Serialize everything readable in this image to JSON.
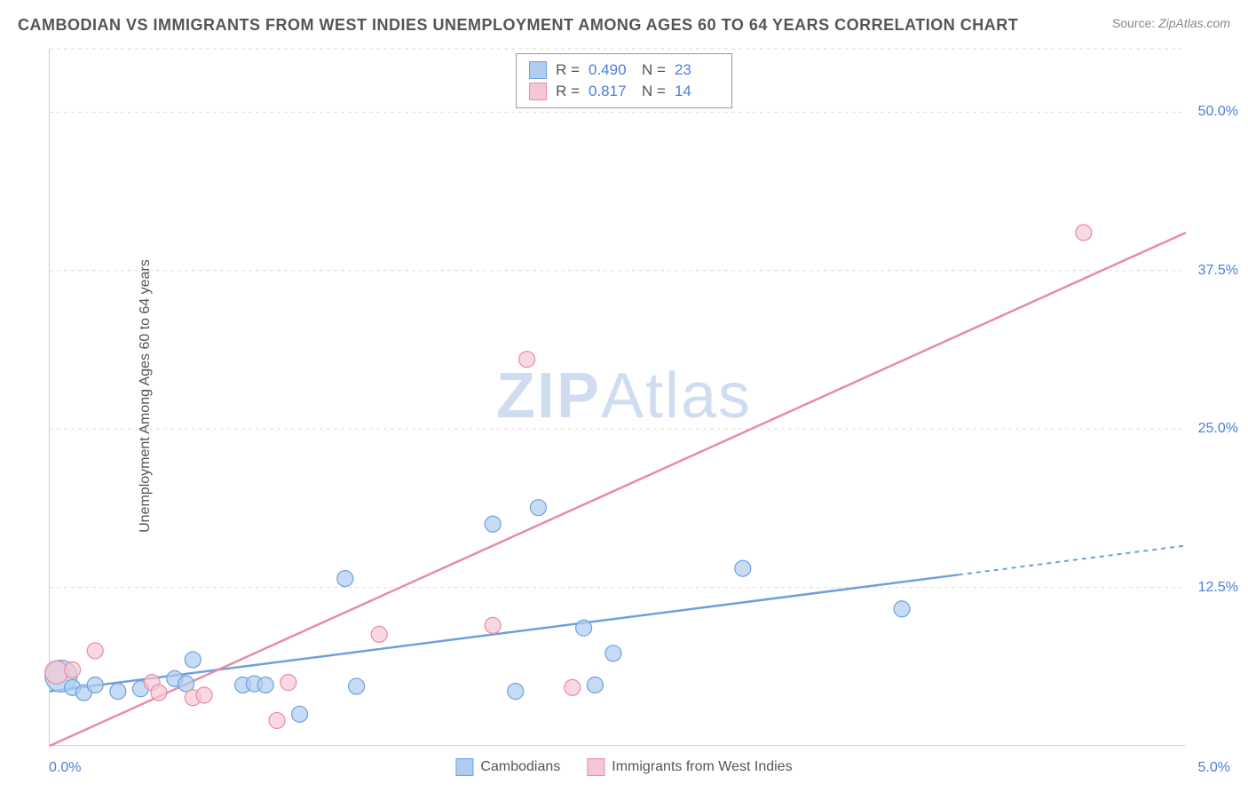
{
  "title": "CAMBODIAN VS IMMIGRANTS FROM WEST INDIES UNEMPLOYMENT AMONG AGES 60 TO 64 YEARS CORRELATION CHART",
  "source_label": "Source:",
  "source_value": "ZipAtlas.com",
  "ylabel": "Unemployment Among Ages 60 to 64 years",
  "watermark_a": "ZIP",
  "watermark_b": "Atlas",
  "chart": {
    "type": "scatter",
    "background_color": "#ffffff",
    "grid_color": "#dddddd",
    "axis_color": "#cccccc",
    "tick_color": "#4a7fd8",
    "xlim": [
      0.0,
      5.0
    ],
    "ylim": [
      0.0,
      55.0
    ],
    "yticks": [
      12.5,
      25.0,
      37.5,
      50.0
    ],
    "ytick_labels": [
      "12.5%",
      "25.0%",
      "37.5%",
      "50.0%"
    ],
    "xtick_min_label": "0.0%",
    "xtick_max_label": "5.0%",
    "series": [
      {
        "name": "Cambodians",
        "color_fill": "#aecdf0",
        "color_stroke": "#6ea0dd",
        "r_value": "0.490",
        "n_value": "23",
        "marker_radius": 9,
        "points": [
          [
            0.05,
            5.5,
            18
          ],
          [
            0.1,
            4.6,
            9
          ],
          [
            0.15,
            4.2,
            9
          ],
          [
            0.2,
            4.8,
            9
          ],
          [
            0.3,
            4.3,
            9
          ],
          [
            0.4,
            4.5,
            9
          ],
          [
            0.55,
            5.3,
            9
          ],
          [
            0.6,
            4.9,
            9
          ],
          [
            0.63,
            6.8,
            9
          ],
          [
            0.85,
            4.8,
            9
          ],
          [
            0.9,
            4.9,
            9
          ],
          [
            0.95,
            4.8,
            9
          ],
          [
            1.1,
            2.5,
            9
          ],
          [
            1.35,
            4.7,
            9
          ],
          [
            1.3,
            13.2,
            9
          ],
          [
            1.95,
            17.5,
            9
          ],
          [
            2.05,
            4.3,
            9
          ],
          [
            2.15,
            18.8,
            9
          ],
          [
            2.35,
            9.3,
            9
          ],
          [
            2.4,
            4.8,
            9
          ],
          [
            2.48,
            7.3,
            9
          ],
          [
            3.05,
            14.0,
            9
          ],
          [
            3.75,
            10.8,
            9
          ]
        ],
        "trend": {
          "x1": 0.0,
          "y1": 4.3,
          "x2": 4.0,
          "y2": 13.5,
          "dash_from_x": 4.0,
          "dash_to_x": 5.0,
          "dash_to_y": 15.8
        }
      },
      {
        "name": "Immigrants from West Indies",
        "color_fill": "#f5c7d4",
        "color_stroke": "#e88ba8",
        "r_value": "0.817",
        "n_value": "14",
        "marker_radius": 9,
        "points": [
          [
            0.03,
            5.8,
            13
          ],
          [
            0.1,
            6.0,
            9
          ],
          [
            0.2,
            7.5,
            9
          ],
          [
            0.45,
            5.0,
            9
          ],
          [
            0.48,
            4.2,
            9
          ],
          [
            0.63,
            3.8,
            9
          ],
          [
            0.68,
            4.0,
            9
          ],
          [
            1.0,
            2.0,
            9
          ],
          [
            1.05,
            5.0,
            9
          ],
          [
            1.45,
            8.8,
            9
          ],
          [
            1.95,
            9.5,
            9
          ],
          [
            2.1,
            30.5,
            9
          ],
          [
            2.3,
            4.6,
            9
          ],
          [
            4.55,
            40.5,
            9
          ]
        ],
        "trend": {
          "x1": 0.0,
          "y1": 0.0,
          "x2": 5.0,
          "y2": 40.5,
          "dash_from_x": null
        }
      }
    ]
  },
  "stats_legend": {
    "r_label": "R =",
    "n_label": "N ="
  }
}
